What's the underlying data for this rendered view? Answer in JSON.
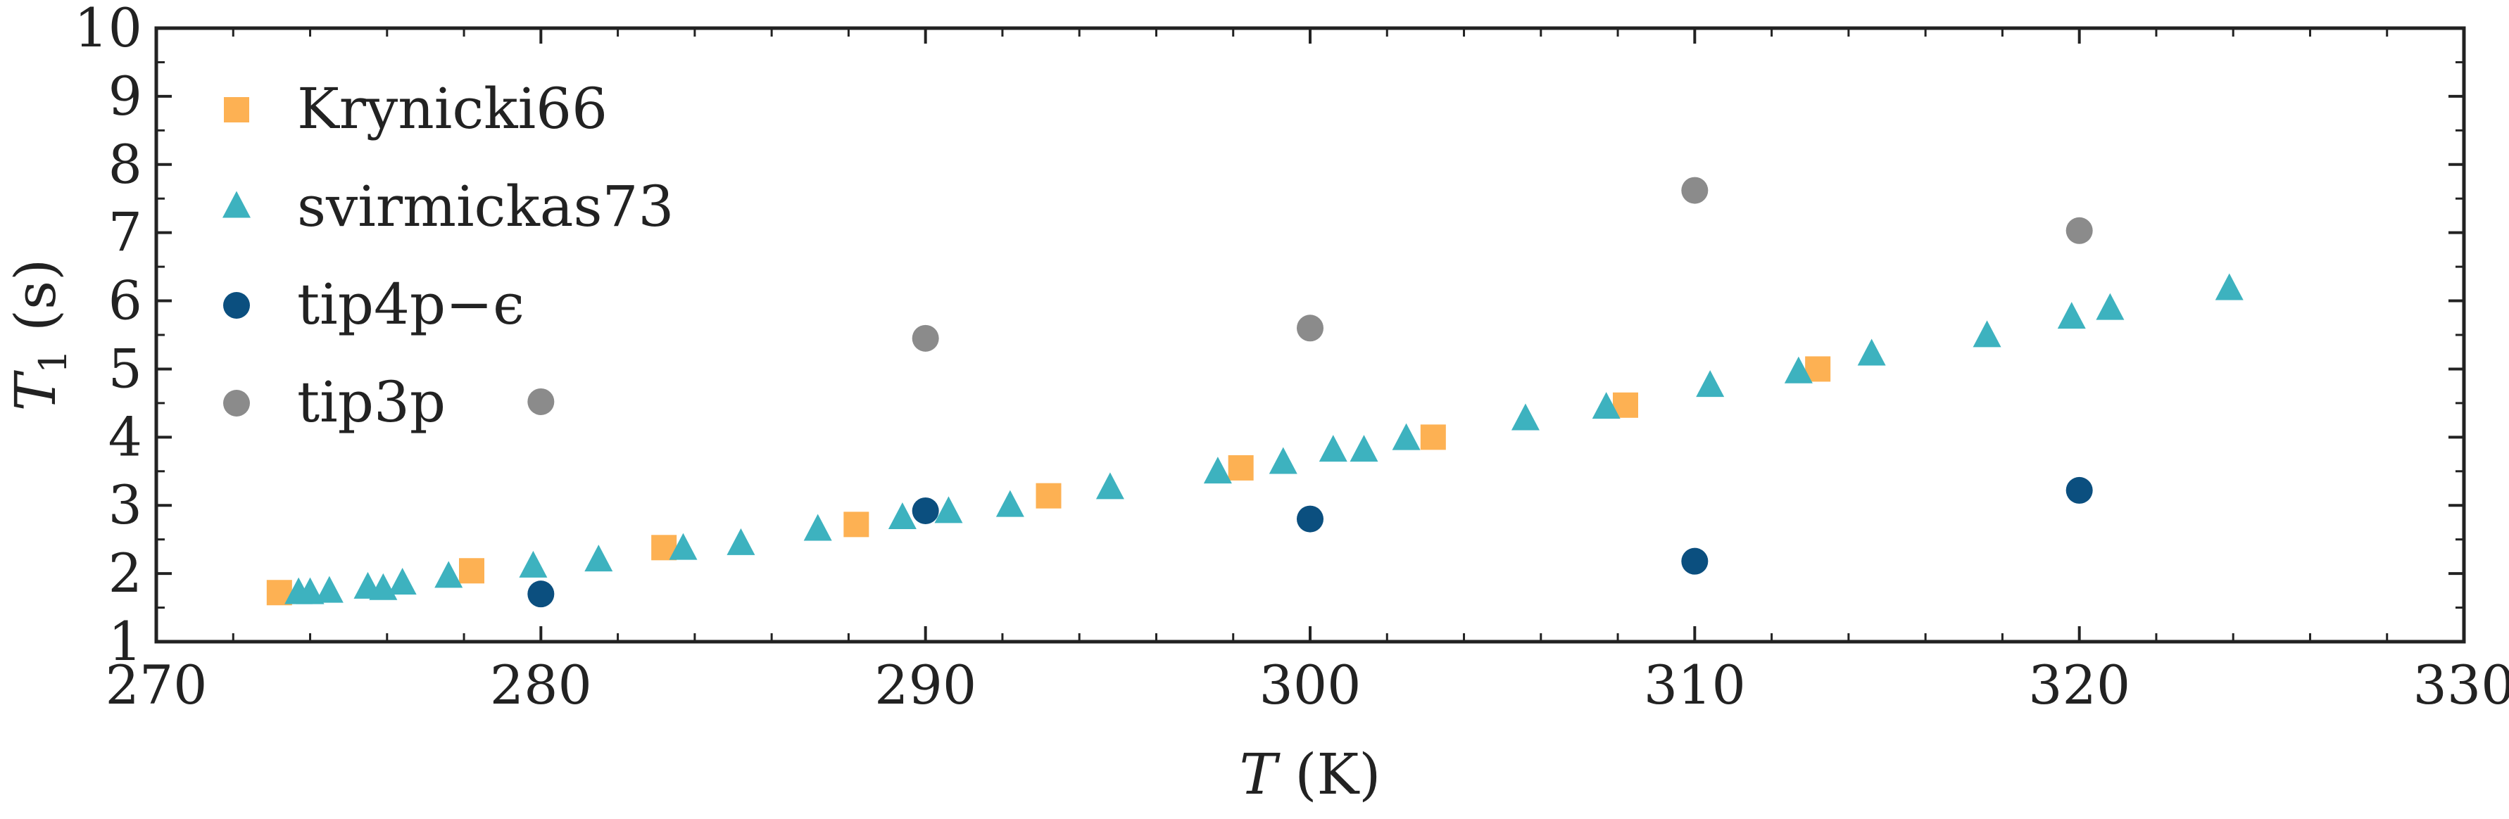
{
  "chart_data": {
    "type": "scatter",
    "xlabel": {
      "symbol": "T",
      "unit": " (K)"
    },
    "ylabel": {
      "symbol": "T",
      "sub": "1",
      "unit": " (s)"
    },
    "xlim": [
      270,
      330
    ],
    "ylim": [
      1,
      10
    ],
    "xticks": [
      270,
      280,
      290,
      300,
      310,
      320,
      330
    ],
    "yticks": [
      1,
      2,
      3,
      4,
      5,
      6,
      7,
      8,
      9,
      10
    ],
    "grid": false,
    "legend_position": "upper-left",
    "series": [
      {
        "name": "Krynicki66",
        "marker": "square",
        "color": "#FDB153",
        "points": [
          [
            273.2,
            1.72
          ],
          [
            278.2,
            2.04
          ],
          [
            283.2,
            2.38
          ],
          [
            288.2,
            2.72
          ],
          [
            293.2,
            3.14
          ],
          [
            298.2,
            3.55
          ],
          [
            303.2,
            4.0
          ],
          [
            308.2,
            4.47
          ],
          [
            313.2,
            5.0
          ]
        ]
      },
      {
        "name": "svirmickas73",
        "marker": "triangle",
        "color": "#3DB2BF",
        "points": [
          [
            273.7,
            1.7
          ],
          [
            274.0,
            1.7
          ],
          [
            274.5,
            1.72
          ],
          [
            275.5,
            1.78
          ],
          [
            275.9,
            1.76
          ],
          [
            276.4,
            1.84
          ],
          [
            277.6,
            1.94
          ],
          [
            279.8,
            2.09
          ],
          [
            281.5,
            2.18
          ],
          [
            283.7,
            2.35
          ],
          [
            285.2,
            2.42
          ],
          [
            287.2,
            2.63
          ],
          [
            289.4,
            2.8
          ],
          [
            290.6,
            2.89
          ],
          [
            292.2,
            2.98
          ],
          [
            294.8,
            3.24
          ],
          [
            297.6,
            3.47
          ],
          [
            299.3,
            3.61
          ],
          [
            300.6,
            3.79
          ],
          [
            301.4,
            3.79
          ],
          [
            302.5,
            3.96
          ],
          [
            305.6,
            4.25
          ],
          [
            307.7,
            4.42
          ],
          [
            310.4,
            4.74
          ],
          [
            312.7,
            4.94
          ],
          [
            314.6,
            5.2
          ],
          [
            317.6,
            5.47
          ],
          [
            319.8,
            5.74
          ],
          [
            320.8,
            5.87
          ],
          [
            323.9,
            6.16
          ]
        ]
      },
      {
        "name": "tip4p−ϵ",
        "marker": "circle",
        "color": "#0B4F7F",
        "points": [
          [
            280,
            1.7
          ],
          [
            290,
            2.92
          ],
          [
            300,
            2.8
          ],
          [
            310,
            2.18
          ],
          [
            320,
            3.22
          ]
        ]
      },
      {
        "name": "tip3p",
        "marker": "circle",
        "color": "#8B8B8B",
        "points": [
          [
            280,
            4.52
          ],
          [
            290,
            5.45
          ],
          [
            300,
            5.6
          ],
          [
            310,
            7.62
          ],
          [
            320,
            7.03
          ]
        ]
      }
    ]
  }
}
